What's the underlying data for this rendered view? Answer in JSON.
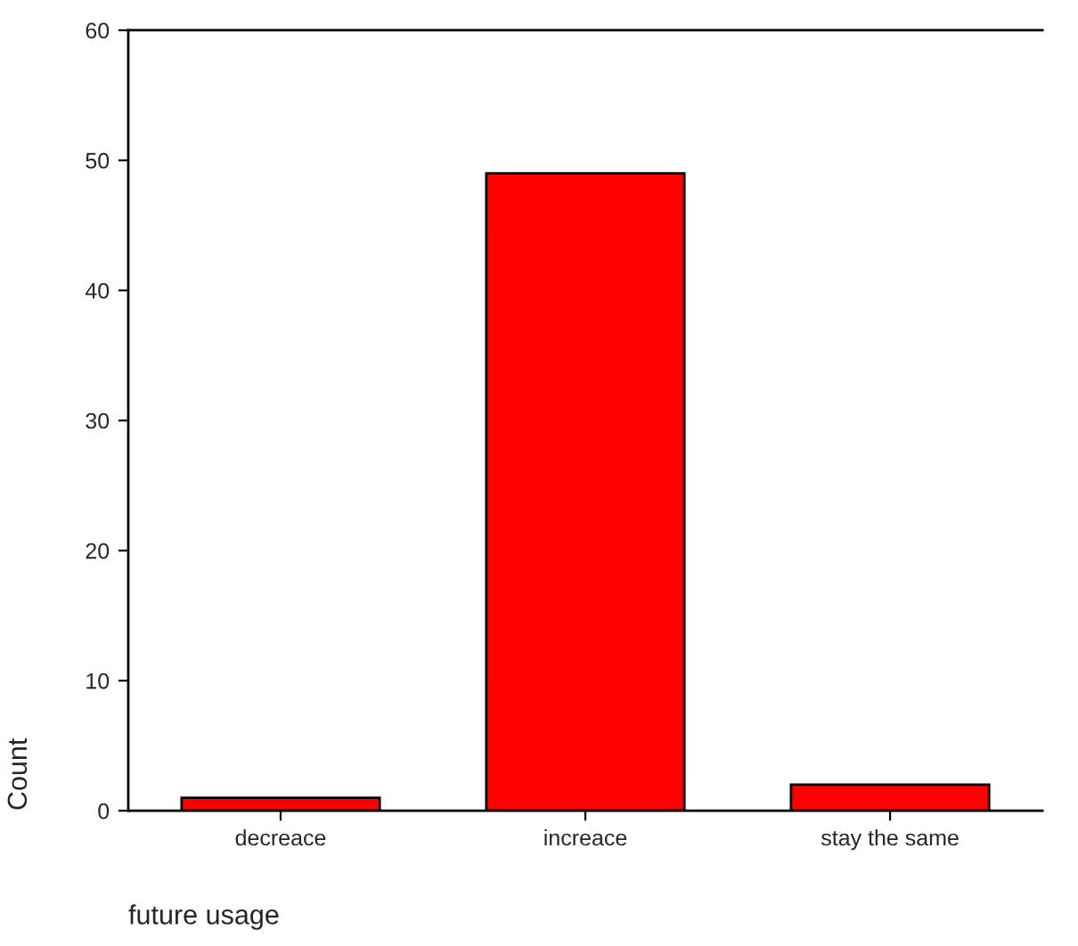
{
  "chart_data": {
    "type": "bar",
    "xlabel": "future usage",
    "ylabel": "Count",
    "categories": [
      "decreace",
      "increace",
      "stay the same"
    ],
    "values": [
      1,
      49,
      2
    ],
    "color": "#ff0000",
    "ylim": [
      0,
      60
    ],
    "yticks": [
      0,
      10,
      20,
      30,
      40,
      50,
      60
    ],
    "grid": false,
    "legend": false
  }
}
